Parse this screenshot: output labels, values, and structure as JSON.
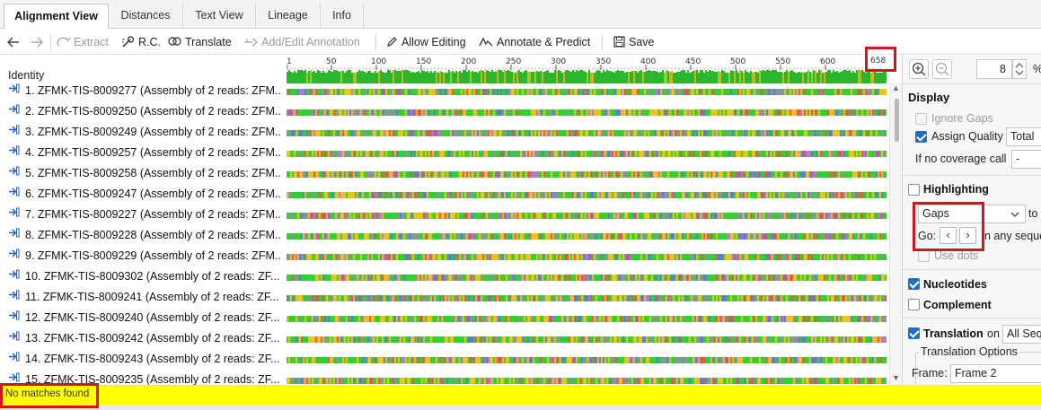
{
  "tabs": [
    {
      "label": "Alignment View",
      "active": true
    },
    {
      "label": "Distances"
    },
    {
      "label": "Text View"
    },
    {
      "label": "Lineage"
    },
    {
      "label": "Info"
    }
  ],
  "toolbar": {
    "extract": "Extract",
    "rc": "R.C.",
    "translate": "Translate",
    "add_edit_annotation": "Add/Edit Annotation",
    "allow_editing": "Allow Editing",
    "annotate_predict": "Annotate & Predict",
    "save": "Save"
  },
  "alignment": {
    "identity_label": "Identity",
    "ruler_ticks": [
      "1",
      "50",
      "100",
      "150",
      "200",
      "250",
      "300",
      "350",
      "400",
      "450",
      "500",
      "550",
      "600"
    ],
    "sequence_length": "658",
    "sequences": [
      "1. ZFMK-TIS-8009277 (Assembly of 2 reads: ZFM...",
      "2. ZFMK-TIS-8009250 (Assembly of 2 reads: ZFM...",
      "3. ZFMK-TIS-8009249 (Assembly of 2 reads: ZFM...",
      "4. ZFMK-TIS-8009257 (Assembly of 2 reads: ZFM...",
      "5. ZFMK-TIS-8009258 (Assembly of 2 reads: ZFM...",
      "6. ZFMK-TIS-8009247 (Assembly of 2 reads: ZFM...",
      "7. ZFMK-TIS-8009227 (Assembly of 2 reads: ZFM...",
      "8. ZFMK-TIS-8009228 (Assembly of 2 reads: ZFM...",
      "9. ZFMK-TIS-8009229 (Assembly of 2 reads: ZFM...",
      "10. ZFMK-TIS-8009302 (Assembly of 2 reads: ZF...",
      "11. ZFMK-TIS-8009241 (Assembly of 2 reads: ZF...",
      "12. ZFMK-TIS-8009240 (Assembly of 2 reads: ZF...",
      "13. ZFMK-TIS-8009242 (Assembly of 2 reads: ZF...",
      "14. ZFMK-TIS-8009243 (Assembly of 2 reads: ZF...",
      "15. ZFMK-TIS-8009235 (Assembly of 2 reads: ZF..."
    ],
    "nucleotide_colors": {
      "A": "#e25555",
      "C": "#5a7bd8",
      "G": "#f2c21b",
      "T": "#2fd22f",
      "other": "#b07ad0"
    }
  },
  "panel": {
    "zoom_value": "8",
    "zoom_unit": "%",
    "display_title": "Display",
    "ignore_gaps": "Ignore Gaps",
    "assign_quality": "Assign Quality",
    "assign_quality_value": "Total",
    "if_no_coverage": "If no coverage call",
    "if_no_coverage_value": "-",
    "highlighting": "Highlighting",
    "highlight_select": "Gaps",
    "to_label": "to",
    "go_label": "Go:",
    "any_sequence": "n any seque",
    "use_dots": "Use dots",
    "nucleotides": "Nucleotides",
    "complement": "Complement",
    "translation": "Translation",
    "translation_on": "on",
    "translation_on_value": "All Seque",
    "translation_options": "Translation Options",
    "frame_label": "Frame:",
    "frame_value": "Frame 2"
  },
  "status": {
    "message": "No matches found",
    "bar_color": "#ffff00"
  }
}
